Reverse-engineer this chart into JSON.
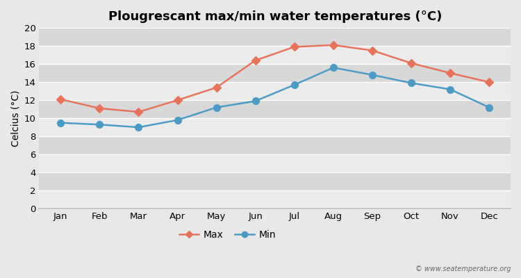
{
  "title": "Plougrescant max/min water temperatures (°C)",
  "ylabel": "Celcius (°C)",
  "months": [
    "Jan",
    "Feb",
    "Mar",
    "Apr",
    "May",
    "Jun",
    "Jul",
    "Aug",
    "Sep",
    "Oct",
    "Nov",
    "Dec"
  ],
  "max_temps": [
    12.1,
    11.1,
    10.7,
    12.0,
    13.4,
    16.4,
    17.9,
    18.1,
    17.5,
    16.1,
    15.0,
    14.0
  ],
  "min_temps": [
    9.5,
    9.3,
    9.0,
    9.8,
    11.2,
    11.9,
    13.7,
    15.6,
    14.8,
    13.9,
    13.2,
    11.2
  ],
  "max_color": "#E8735A",
  "min_color": "#4A9CC7",
  "bg_color": "#e8e8e8",
  "band_light": "#ebebeb",
  "band_dark": "#d8d8d8",
  "grid_color": "#ffffff",
  "ylim": [
    0,
    20
  ],
  "yticks": [
    0,
    2,
    4,
    6,
    8,
    10,
    12,
    14,
    16,
    18,
    20
  ],
  "marker_max": "D",
  "marker_min": "o",
  "marker_size_max": 6,
  "marker_size_min": 7,
  "line_width": 1.8,
  "title_fontsize": 13,
  "label_fontsize": 10,
  "tick_fontsize": 9.5,
  "watermark": "© www.seatemperature.org"
}
